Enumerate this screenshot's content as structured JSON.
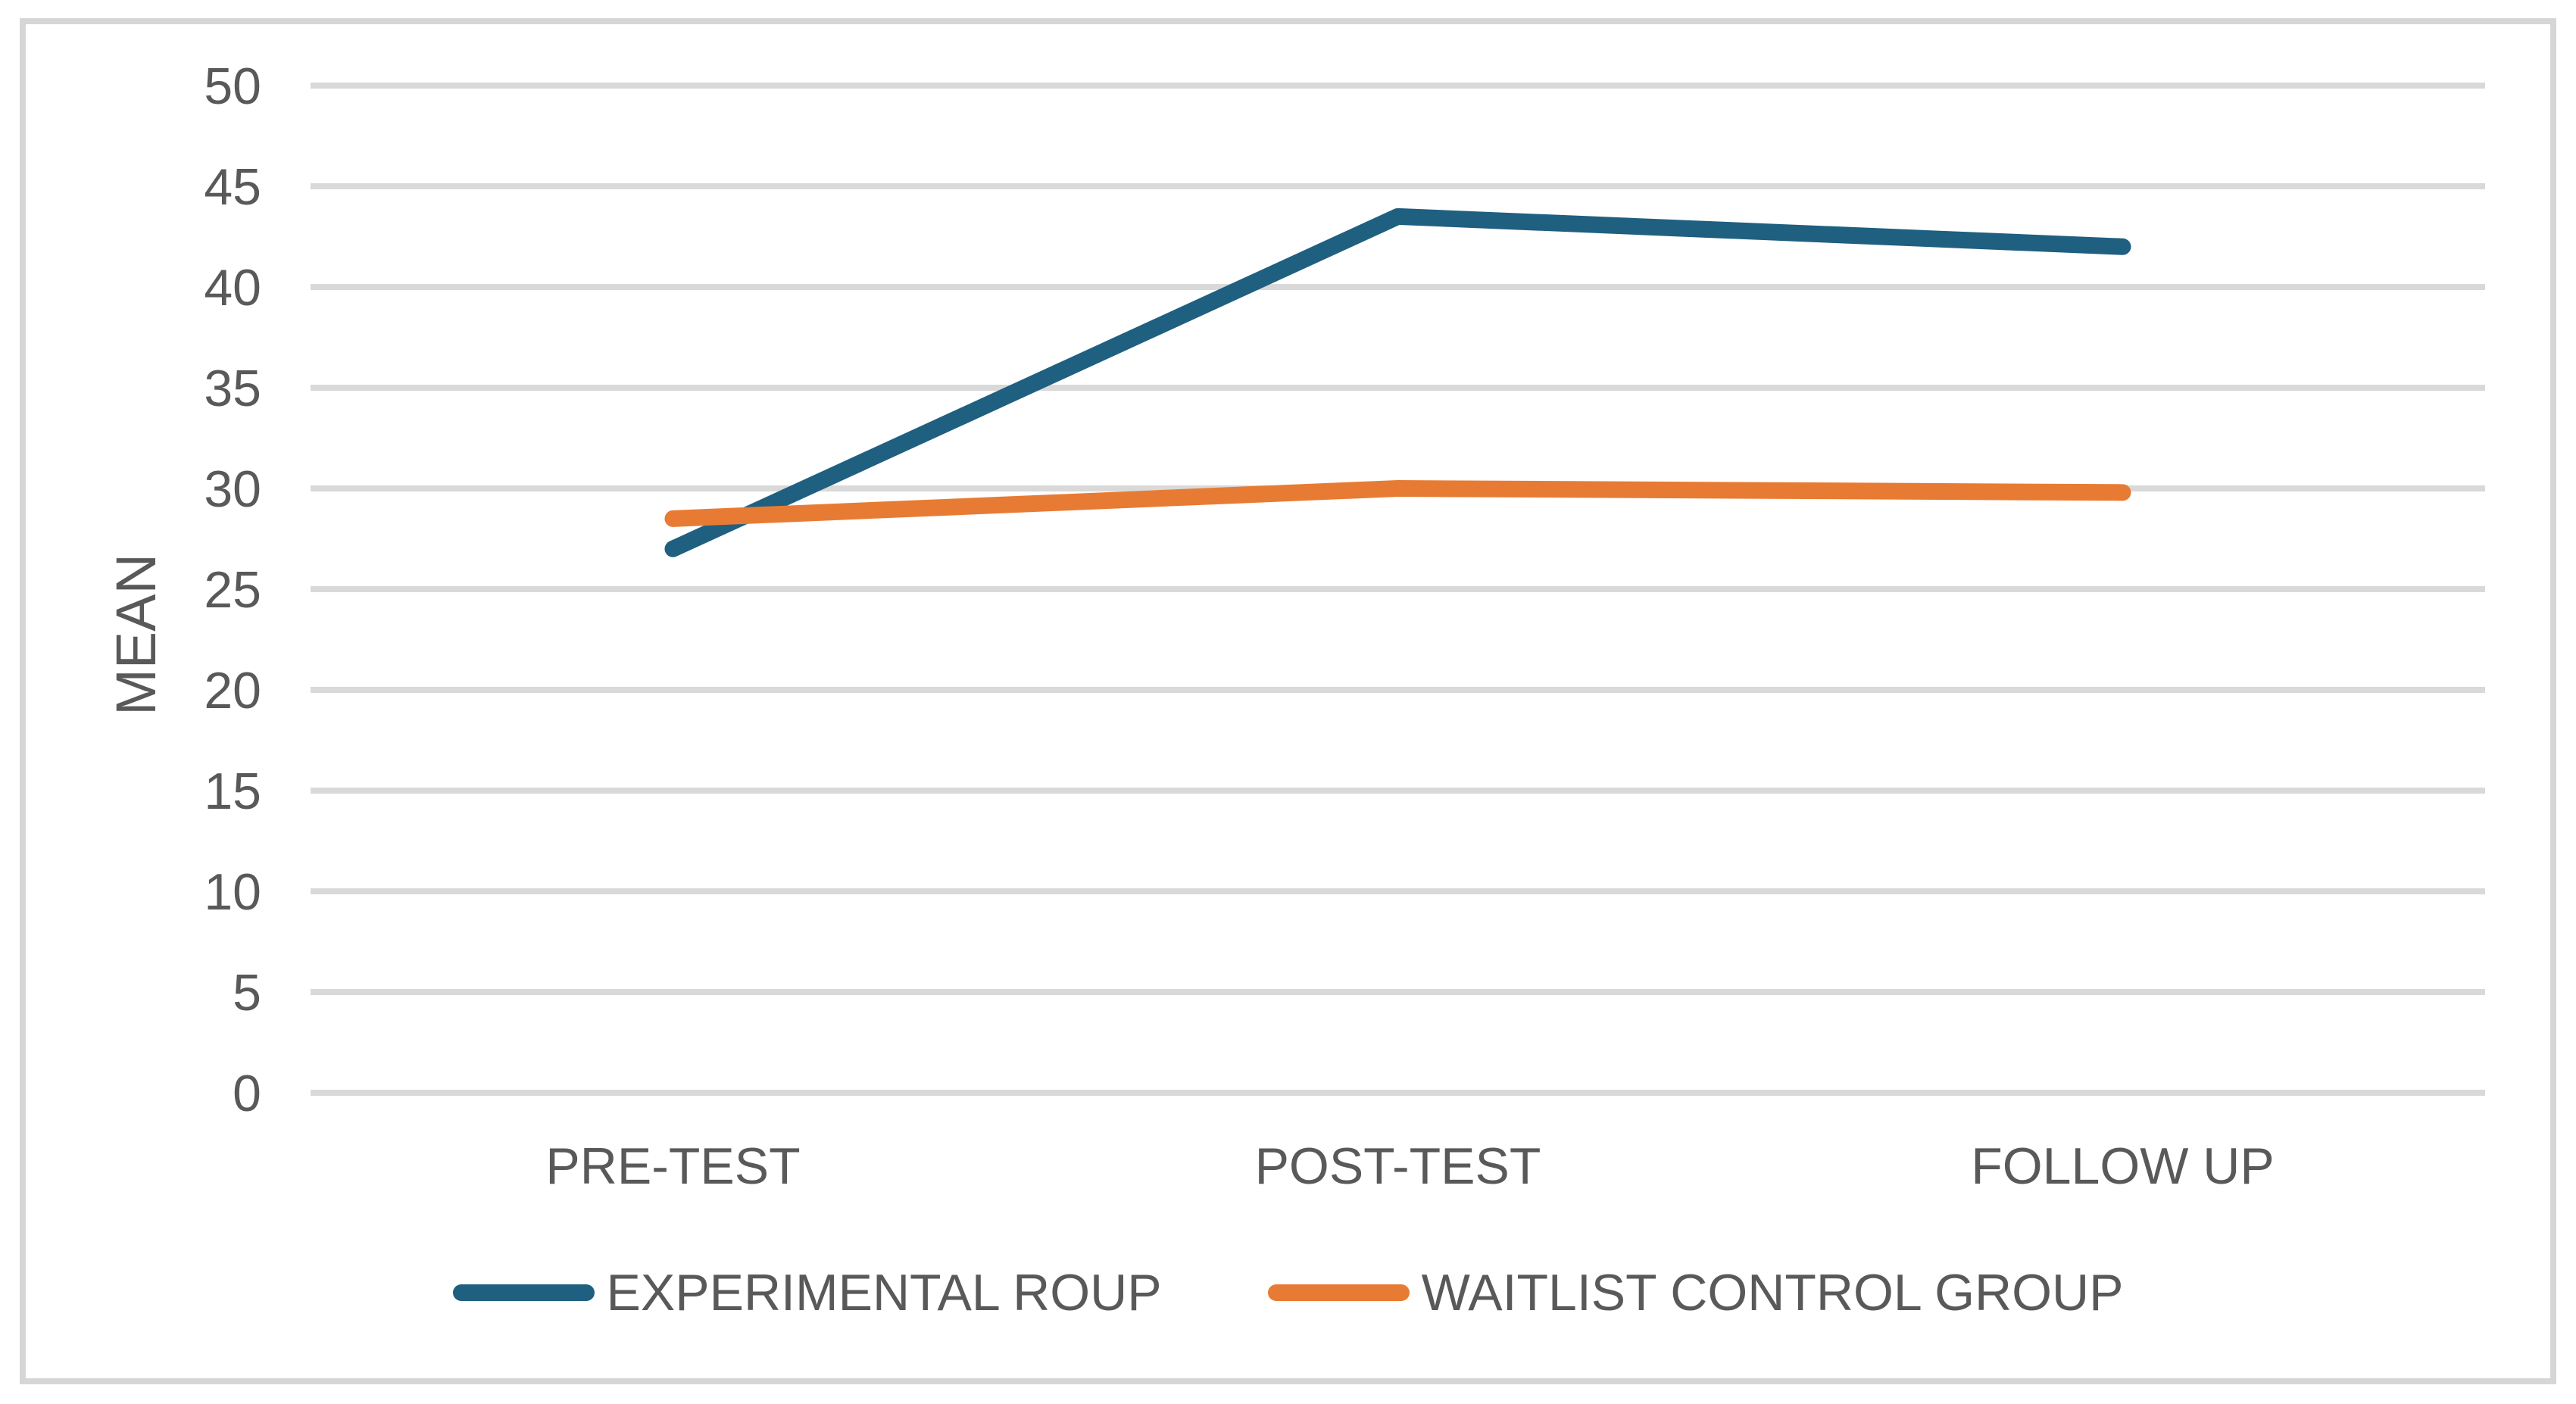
{
  "chart_data": {
    "type": "line",
    "title": "",
    "xlabel": "",
    "ylabel": "MEAN",
    "ylim": [
      0,
      50
    ],
    "yticks": [
      0,
      5,
      10,
      15,
      20,
      25,
      30,
      35,
      40,
      45,
      50
    ],
    "categories": [
      "PRE-TEST",
      "POST-TEST",
      "FOLLOW UP"
    ],
    "series": [
      {
        "name": "EXPERIMENTAL ROUP",
        "color": "#1F5F80",
        "values": [
          27,
          43.5,
          42
        ]
      },
      {
        "name": "WAITLIST CONTROL GROUP",
        "color": "#E87B33",
        "values": [
          28.5,
          30,
          29.8
        ]
      }
    ],
    "grid": true,
    "legend_position": "bottom",
    "colors": {
      "gridline": "#D9D9D9",
      "text": "#595959",
      "frame_border": "#D6D6D6",
      "background": "#FFFFFF"
    }
  }
}
